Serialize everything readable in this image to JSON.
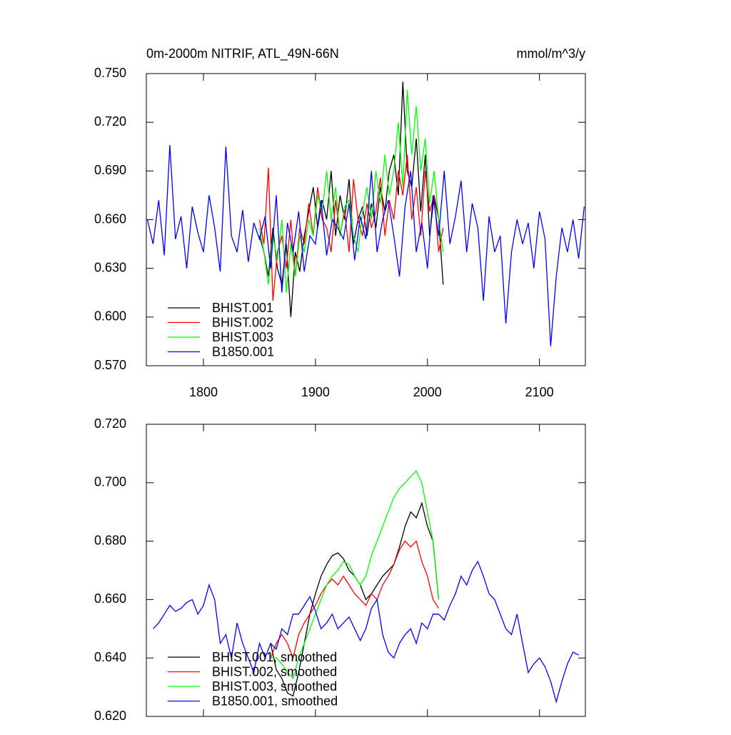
{
  "chart_data": [
    {
      "type": "line",
      "title": "0m-2000m NITRIF, ATL_49N-66N",
      "units": "mmol/m^3/y",
      "xlim": [
        1749,
        2141
      ],
      "xticks": [
        1800,
        1900,
        2000,
        2100
      ],
      "xtick_labels": true,
      "ylim": [
        0.57,
        0.75
      ],
      "yticks": [
        {
          "value": 0.57,
          "label": "0.570"
        },
        {
          "value": 0.6,
          "label": "0.600"
        },
        {
          "value": 0.63,
          "label": "0.630"
        },
        {
          "value": 0.66,
          "label": "0.660"
        },
        {
          "value": 0.69,
          "label": "0.690"
        },
        {
          "value": 0.72,
          "label": "0.720"
        },
        {
          "value": 0.75,
          "label": "0.750"
        }
      ],
      "series": [
        {
          "name": "BHIST.001",
          "color": "#000000",
          "x": [
            1850,
            1854,
            1858,
            1862,
            1866,
            1870,
            1874,
            1878,
            1882,
            1886,
            1890,
            1894,
            1898,
            1902,
            1906,
            1910,
            1914,
            1918,
            1922,
            1926,
            1930,
            1934,
            1938,
            1942,
            1946,
            1950,
            1954,
            1958,
            1962,
            1966,
            1970,
            1974,
            1978,
            1982,
            1986,
            1990,
            1994,
            1998,
            2002,
            2006,
            2010,
            2014
          ],
          "values": [
            0.65,
            0.64,
            0.625,
            0.655,
            0.63,
            0.62,
            0.645,
            0.6,
            0.64,
            0.628,
            0.65,
            0.665,
            0.68,
            0.655,
            0.672,
            0.66,
            0.69,
            0.65,
            0.675,
            0.66,
            0.685,
            0.645,
            0.66,
            0.668,
            0.65,
            0.67,
            0.655,
            0.68,
            0.665,
            0.69,
            0.7,
            0.675,
            0.745,
            0.69,
            0.68,
            0.71,
            0.665,
            0.7,
            0.65,
            0.675,
            0.66,
            0.62
          ]
        },
        {
          "name": "BHIST.002",
          "color": "#ff0000",
          "x": [
            1850,
            1854,
            1858,
            1862,
            1866,
            1870,
            1874,
            1878,
            1882,
            1886,
            1890,
            1894,
            1898,
            1902,
            1906,
            1910,
            1914,
            1918,
            1922,
            1926,
            1930,
            1934,
            1938,
            1942,
            1946,
            1950,
            1954,
            1958,
            1962,
            1966,
            1970,
            1974,
            1978,
            1982,
            1986,
            1990,
            1994,
            1998,
            2002,
            2006,
            2010,
            2014
          ],
          "values": [
            0.66,
            0.645,
            0.692,
            0.61,
            0.64,
            0.65,
            0.63,
            0.66,
            0.625,
            0.655,
            0.645,
            0.67,
            0.65,
            0.68,
            0.66,
            0.655,
            0.64,
            0.672,
            0.65,
            0.666,
            0.64,
            0.685,
            0.66,
            0.65,
            0.67,
            0.655,
            0.665,
            0.686,
            0.65,
            0.672,
            0.66,
            0.69,
            0.675,
            0.7,
            0.66,
            0.68,
            0.65,
            0.69,
            0.665,
            0.675,
            0.64,
            0.655
          ]
        },
        {
          "name": "BHIST.003",
          "color": "#00ff00",
          "x": [
            1850,
            1854,
            1858,
            1862,
            1866,
            1870,
            1874,
            1878,
            1882,
            1886,
            1890,
            1894,
            1898,
            1902,
            1906,
            1910,
            1914,
            1918,
            1922,
            1926,
            1930,
            1934,
            1938,
            1942,
            1946,
            1950,
            1954,
            1958,
            1962,
            1966,
            1970,
            1974,
            1978,
            1982,
            1986,
            1990,
            1994,
            1998,
            2002,
            2006,
            2010,
            2014
          ],
          "values": [
            0.655,
            0.64,
            0.62,
            0.65,
            0.635,
            0.66,
            0.615,
            0.645,
            0.625,
            0.65,
            0.64,
            0.66,
            0.65,
            0.675,
            0.665,
            0.69,
            0.66,
            0.68,
            0.65,
            0.668,
            0.672,
            0.65,
            0.64,
            0.665,
            0.68,
            0.66,
            0.69,
            0.67,
            0.7,
            0.675,
            0.69,
            0.72,
            0.68,
            0.74,
            0.7,
            0.73,
            0.69,
            0.71,
            0.67,
            0.69,
            0.66,
            0.64
          ]
        },
        {
          "name": "B1850.001",
          "color": "#0000ff",
          "x": [
            1750,
            1755,
            1760,
            1765,
            1770,
            1775,
            1780,
            1785,
            1790,
            1795,
            1800,
            1805,
            1810,
            1815,
            1820,
            1825,
            1830,
            1835,
            1840,
            1845,
            1850,
            1855,
            1860,
            1865,
            1870,
            1875,
            1880,
            1885,
            1890,
            1895,
            1900,
            1905,
            1910,
            1915,
            1920,
            1925,
            1930,
            1935,
            1940,
            1945,
            1950,
            1955,
            1960,
            1965,
            1970,
            1975,
            1980,
            1985,
            1990,
            1995,
            2000,
            2005,
            2010,
            2015,
            2020,
            2025,
            2030,
            2035,
            2040,
            2045,
            2050,
            2055,
            2060,
            2065,
            2070,
            2075,
            2080,
            2085,
            2090,
            2095,
            2100,
            2105,
            2110,
            2115,
            2120,
            2125,
            2130,
            2135,
            2140
          ],
          "values": [
            0.66,
            0.645,
            0.672,
            0.638,
            0.706,
            0.648,
            0.662,
            0.63,
            0.668,
            0.652,
            0.64,
            0.675,
            0.655,
            0.628,
            0.705,
            0.65,
            0.64,
            0.666,
            0.634,
            0.658,
            0.648,
            0.662,
            0.63,
            0.675,
            0.615,
            0.658,
            0.64,
            0.665,
            0.628,
            0.65,
            0.645,
            0.672,
            0.638,
            0.66,
            0.655,
            0.648,
            0.67,
            0.635,
            0.662,
            0.648,
            0.69,
            0.64,
            0.66,
            0.672,
            0.65,
            0.625,
            0.668,
            0.69,
            0.64,
            0.658,
            0.63,
            0.675,
            0.65,
            0.69,
            0.645,
            0.662,
            0.684,
            0.64,
            0.67,
            0.655,
            0.61,
            0.662,
            0.64,
            0.65,
            0.596,
            0.64,
            0.66,
            0.645,
            0.658,
            0.63,
            0.665,
            0.648,
            0.582,
            0.625,
            0.655,
            0.64,
            0.66,
            0.636,
            0.668
          ]
        }
      ]
    },
    {
      "type": "line",
      "xlim": [
        1749,
        2141
      ],
      "xticks": [
        1800,
        1900,
        2000,
        2100
      ],
      "xtick_labels": false,
      "ylim": [
        0.62,
        0.72
      ],
      "yticks": [
        {
          "value": 0.62,
          "label": "0.620"
        },
        {
          "value": 0.64,
          "label": "0.640"
        },
        {
          "value": 0.66,
          "label": "0.660"
        },
        {
          "value": 0.68,
          "label": "0.680"
        },
        {
          "value": 0.7,
          "label": "0.700"
        },
        {
          "value": 0.72,
          "label": "0.720"
        }
      ],
      "series": [
        {
          "name": "BHIST.001, smoothed",
          "color": "#000000",
          "x": [
            1860,
            1865,
            1870,
            1875,
            1880,
            1885,
            1890,
            1895,
            1900,
            1905,
            1910,
            1915,
            1920,
            1925,
            1930,
            1935,
            1940,
            1945,
            1950,
            1955,
            1960,
            1965,
            1970,
            1975,
            1980,
            1985,
            1990,
            1995,
            2000,
            2005,
            2010
          ],
          "values": [
            0.645,
            0.636,
            0.633,
            0.628,
            0.627,
            0.635,
            0.645,
            0.655,
            0.662,
            0.668,
            0.672,
            0.675,
            0.676,
            0.674,
            0.67,
            0.668,
            0.665,
            0.66,
            0.662,
            0.665,
            0.668,
            0.67,
            0.672,
            0.678,
            0.685,
            0.69,
            0.688,
            0.693,
            0.685,
            0.68,
            0.66
          ]
        },
        {
          "name": "BHIST.002, smoothed",
          "color": "#ff0000",
          "x": [
            1860,
            1865,
            1870,
            1875,
            1880,
            1885,
            1890,
            1895,
            1900,
            1905,
            1910,
            1915,
            1920,
            1925,
            1930,
            1935,
            1940,
            1945,
            1950,
            1955,
            1960,
            1965,
            1970,
            1975,
            1980,
            1985,
            1990,
            1995,
            2000,
            2005,
            2010
          ],
          "values": [
            0.64,
            0.645,
            0.648,
            0.645,
            0.64,
            0.648,
            0.652,
            0.655,
            0.658,
            0.662,
            0.665,
            0.667,
            0.665,
            0.668,
            0.665,
            0.662,
            0.66,
            0.658,
            0.662,
            0.66,
            0.665,
            0.668,
            0.672,
            0.677,
            0.68,
            0.678,
            0.68,
            0.673,
            0.668,
            0.66,
            0.657
          ]
        },
        {
          "name": "BHIST.003, smoothed",
          "color": "#00ff00",
          "x": [
            1860,
            1865,
            1870,
            1875,
            1880,
            1885,
            1890,
            1895,
            1900,
            1905,
            1910,
            1915,
            1920,
            1925,
            1930,
            1935,
            1940,
            1945,
            1950,
            1955,
            1960,
            1965,
            1970,
            1975,
            1980,
            1985,
            1990,
            1995,
            2000,
            2005,
            2010
          ],
          "values": [
            0.64,
            0.64,
            0.638,
            0.635,
            0.633,
            0.64,
            0.645,
            0.65,
            0.655,
            0.66,
            0.665,
            0.668,
            0.67,
            0.673,
            0.672,
            0.668,
            0.665,
            0.668,
            0.675,
            0.68,
            0.685,
            0.69,
            0.695,
            0.698,
            0.7,
            0.702,
            0.704,
            0.7,
            0.69,
            0.68,
            0.66
          ]
        },
        {
          "name": "B1850.001, smoothed",
          "color": "#0000ff",
          "x": [
            1755,
            1760,
            1765,
            1770,
            1775,
            1780,
            1785,
            1790,
            1795,
            1800,
            1805,
            1810,
            1815,
            1820,
            1825,
            1830,
            1835,
            1840,
            1845,
            1850,
            1855,
            1860,
            1865,
            1870,
            1875,
            1880,
            1885,
            1890,
            1895,
            1900,
            1905,
            1910,
            1915,
            1920,
            1925,
            1930,
            1935,
            1940,
            1945,
            1950,
            1955,
            1960,
            1965,
            1970,
            1975,
            1980,
            1985,
            1990,
            1995,
            2000,
            2005,
            2010,
            2015,
            2020,
            2025,
            2030,
            2035,
            2040,
            2045,
            2050,
            2055,
            2060,
            2065,
            2070,
            2075,
            2080,
            2085,
            2090,
            2095,
            2100,
            2105,
            2110,
            2115,
            2120,
            2125,
            2130,
            2135
          ],
          "values": [
            0.65,
            0.652,
            0.655,
            0.658,
            0.656,
            0.657,
            0.659,
            0.66,
            0.655,
            0.658,
            0.665,
            0.66,
            0.645,
            0.648,
            0.64,
            0.652,
            0.645,
            0.64,
            0.635,
            0.645,
            0.64,
            0.645,
            0.643,
            0.65,
            0.648,
            0.655,
            0.655,
            0.658,
            0.661,
            0.656,
            0.65,
            0.652,
            0.655,
            0.65,
            0.652,
            0.654,
            0.65,
            0.646,
            0.65,
            0.657,
            0.66,
            0.648,
            0.642,
            0.64,
            0.645,
            0.648,
            0.65,
            0.645,
            0.652,
            0.65,
            0.655,
            0.655,
            0.653,
            0.658,
            0.662,
            0.668,
            0.665,
            0.67,
            0.673,
            0.668,
            0.662,
            0.66,
            0.655,
            0.65,
            0.648,
            0.655,
            0.645,
            0.635,
            0.638,
            0.64,
            0.637,
            0.632,
            0.625,
            0.632,
            0.638,
            0.642,
            0.641
          ]
        }
      ]
    }
  ]
}
